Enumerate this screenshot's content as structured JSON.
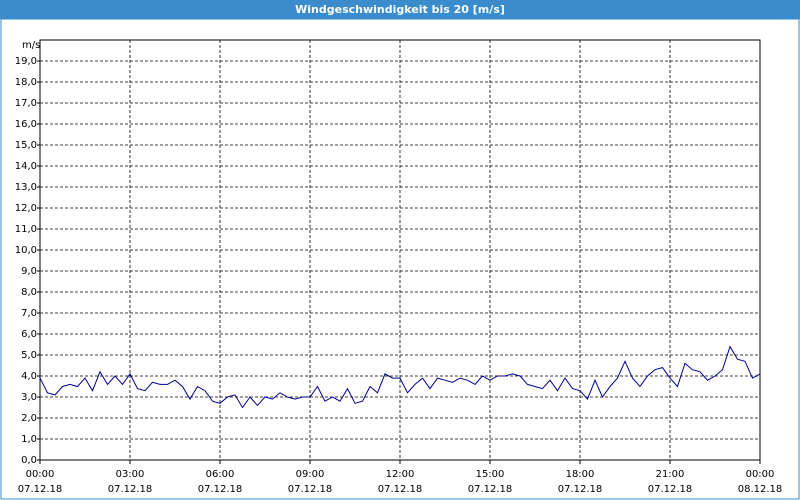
{
  "chart_data": {
    "type": "line",
    "title": "Windgeschwindigkeit bis 20 [m/s]",
    "y_label": "m/s",
    "x": [
      0,
      0.25,
      0.5,
      0.75,
      1,
      1.25,
      1.5,
      1.75,
      2,
      2.25,
      2.5,
      2.75,
      3,
      3.25,
      3.5,
      3.75,
      4,
      4.25,
      4.5,
      4.75,
      5,
      5.25,
      5.5,
      5.75,
      6,
      6.25,
      6.5,
      6.75,
      7,
      7.25,
      7.5,
      7.75,
      8,
      8.25,
      8.5,
      8.75,
      9,
      9.25,
      9.5,
      9.75,
      10,
      10.25,
      10.5,
      10.75,
      11,
      11.25,
      11.5,
      11.75,
      12,
      12.25,
      12.5,
      12.75,
      13,
      13.25,
      13.5,
      13.75,
      14,
      14.25,
      14.5,
      14.75,
      15,
      15.25,
      15.5,
      15.75,
      16,
      16.25,
      16.5,
      16.75,
      17,
      17.25,
      17.5,
      17.75,
      18,
      18.25,
      18.5,
      18.75,
      19,
      19.25,
      19.5,
      19.75,
      20,
      20.25,
      20.5,
      20.75,
      21,
      21.25,
      21.5,
      21.75,
      22,
      22.25,
      22.5,
      22.75,
      23,
      23.25,
      23.5,
      23.75,
      24
    ],
    "series": [
      {
        "name": "Windgeschwindigkeit",
        "color": "#00008b",
        "values": [
          3.9,
          3.2,
          3.1,
          3.5,
          3.6,
          3.5,
          3.9,
          3.3,
          4.2,
          3.6,
          4.0,
          3.6,
          4.1,
          3.4,
          3.3,
          3.7,
          3.6,
          3.6,
          3.8,
          3.5,
          2.9,
          3.5,
          3.3,
          2.8,
          2.7,
          3.0,
          3.1,
          2.5,
          3.0,
          2.6,
          3.0,
          2.9,
          3.2,
          3.0,
          2.9,
          3.0,
          3.0,
          3.5,
          2.8,
          3.0,
          2.8,
          3.4,
          2.7,
          2.8,
          3.5,
          3.2,
          4.1,
          3.9,
          3.9,
          3.2,
          3.6,
          3.9,
          3.4,
          3.9,
          3.8,
          3.7,
          3.9,
          3.8,
          3.6,
          4.0,
          3.8,
          4.0,
          4.0,
          4.1,
          4.0,
          3.6,
          3.5,
          3.4,
          3.8,
          3.3,
          3.9,
          3.4,
          3.3,
          2.9,
          3.8,
          3.0,
          3.5,
          3.9,
          4.7,
          3.9,
          3.5,
          4.0,
          4.3,
          4.4,
          3.9,
          3.5,
          4.6,
          4.3,
          4.2,
          3.8,
          4.0,
          4.3,
          5.4,
          4.8,
          4.7,
          3.9,
          4.1
        ]
      }
    ],
    "xlim": [
      0,
      24
    ],
    "xticks": [
      {
        "value": 0,
        "label": "00:00"
      },
      {
        "value": 3,
        "label": "03:00"
      },
      {
        "value": 6,
        "label": "06:00"
      },
      {
        "value": 9,
        "label": "09:00"
      },
      {
        "value": 12,
        "label": "12:00"
      },
      {
        "value": 15,
        "label": "15:00"
      },
      {
        "value": 18,
        "label": "18:00"
      },
      {
        "value": 21,
        "label": "21:00"
      },
      {
        "value": 24,
        "label": "00:00"
      }
    ],
    "xtick_dates": [
      "07.12.18",
      "07.12.18",
      "07.12.18",
      "07.12.18",
      "07.12.18",
      "07.12.18",
      "07.12.18",
      "07.12.18",
      "08.12.18"
    ],
    "ylim": [
      0,
      20
    ],
    "yticks": [
      {
        "value": 0,
        "label": "0,0"
      },
      {
        "value": 1,
        "label": "1,0"
      },
      {
        "value": 2,
        "label": "2,0"
      },
      {
        "value": 3,
        "label": "3,0"
      },
      {
        "value": 4,
        "label": "4,0"
      },
      {
        "value": 5,
        "label": "5,0"
      },
      {
        "value": 6,
        "label": "6,0"
      },
      {
        "value": 7,
        "label": "7,0"
      },
      {
        "value": 8,
        "label": "8,0"
      },
      {
        "value": 9,
        "label": "9,0"
      },
      {
        "value": 10,
        "label": "10,0"
      },
      {
        "value": 11,
        "label": "11,0"
      },
      {
        "value": 12,
        "label": "12,0"
      },
      {
        "value": 13,
        "label": "13,0"
      },
      {
        "value": 14,
        "label": "14,0"
      },
      {
        "value": 15,
        "label": "15,0"
      },
      {
        "value": 16,
        "label": "16,0"
      },
      {
        "value": 17,
        "label": "17,0"
      },
      {
        "value": 18,
        "label": "18,0"
      },
      {
        "value": 19,
        "label": "19,0"
      }
    ],
    "grid": true
  }
}
